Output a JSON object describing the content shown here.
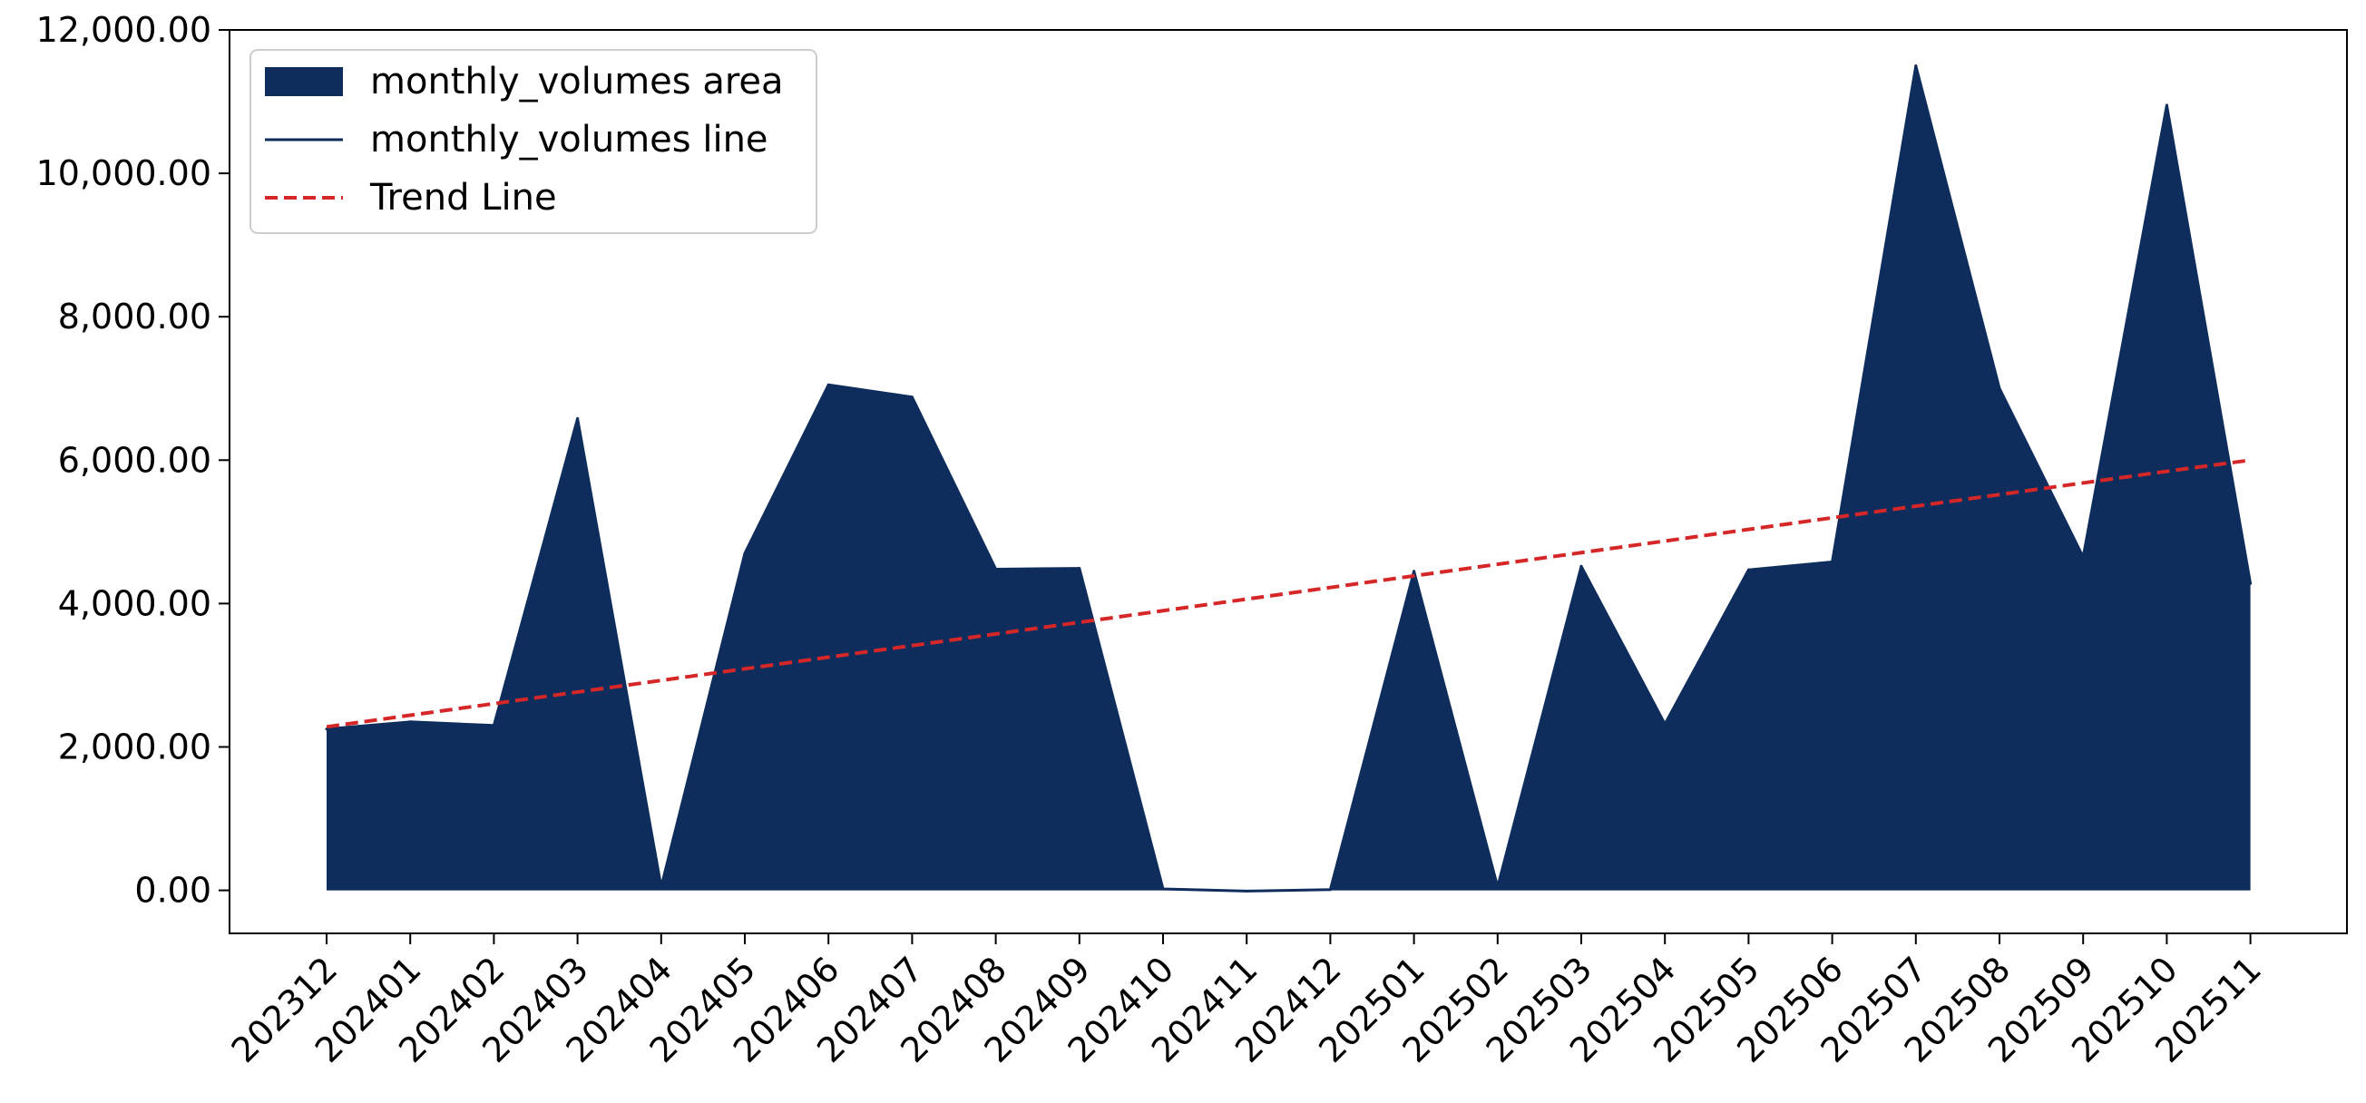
{
  "chart_data": {
    "type": "area",
    "categories": [
      "202312",
      "202401",
      "202402",
      "202403",
      "202404",
      "202405",
      "202406",
      "202407",
      "202408",
      "202409",
      "202410",
      "202411",
      "202412",
      "202501",
      "202502",
      "202503",
      "202504",
      "202505",
      "202506",
      "202507",
      "202508",
      "202509",
      "202510",
      "202511"
    ],
    "series": [
      {
        "name": "monthly_volumes area",
        "kind": "area",
        "color": "#0f2d5c",
        "values": [
          2250,
          2350,
          2300,
          6580,
          50,
          4700,
          7050,
          6880,
          4480,
          4490,
          20,
          -10,
          10,
          4450,
          50,
          4520,
          2320,
          4470,
          4580,
          11500,
          7000,
          4650,
          10950,
          4280
        ]
      },
      {
        "name": "monthly_volumes line",
        "kind": "line",
        "color": "#0f2d5c",
        "values": [
          2250,
          2350,
          2300,
          6580,
          50,
          4700,
          7050,
          6880,
          4480,
          4490,
          20,
          -10,
          10,
          4450,
          50,
          4520,
          2320,
          4470,
          4580,
          11500,
          7000,
          4650,
          10950,
          4280
        ]
      },
      {
        "name": "Trend Line",
        "kind": "dashed-line",
        "color": "#d62728",
        "values": [
          2280,
          2442,
          2604,
          2766,
          2928,
          3090,
          3252,
          3414,
          3576,
          3738,
          3900,
          4062,
          4224,
          4386,
          4548,
          4710,
          4872,
          5034,
          5196,
          5358,
          5520,
          5682,
          5844,
          6000
        ]
      }
    ],
    "y_ticks": [
      "0.00",
      "2,000.00",
      "4,000.00",
      "6,000.00",
      "8,000.00",
      "10,000.00",
      "12,000.00"
    ],
    "y_tick_values": [
      0,
      2000,
      4000,
      6000,
      8000,
      10000,
      12000
    ],
    "ylim": [
      -600,
      12000
    ],
    "xlabel": "",
    "ylabel": "",
    "title": "",
    "grid": false,
    "legend_position": "top-left"
  }
}
